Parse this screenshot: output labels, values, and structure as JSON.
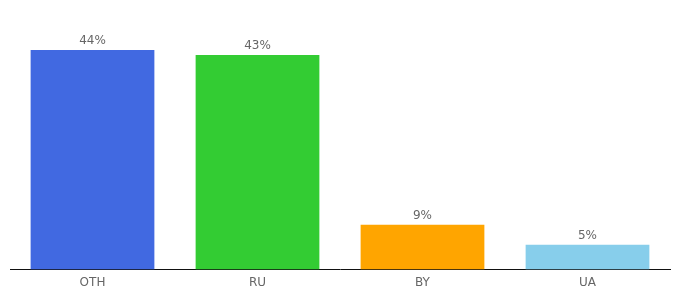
{
  "chart_data": {
    "type": "bar",
    "categories": [
      "OTH",
      "RU",
      "BY",
      "UA"
    ],
    "values": [
      44,
      43,
      9,
      5
    ],
    "value_labels": [
      "44%",
      "43%",
      "9%",
      "5%"
    ],
    "colors": [
      "#4169E1",
      "#33CC33",
      "#FFA500",
      "#87CEEB"
    ],
    "ylim": [
      0,
      50
    ],
    "data_labels": true,
    "tick_labels": "x",
    "grid": false
  }
}
